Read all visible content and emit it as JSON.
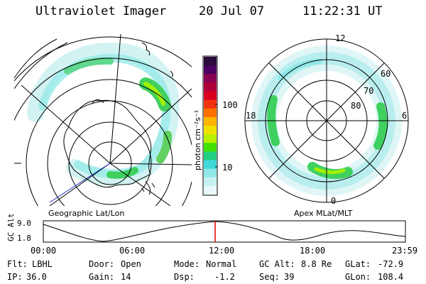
{
  "header": {
    "title": "Ultraviolet Imager",
    "date": "20 Jul 07",
    "time": "11:22:31 UT"
  },
  "left_panel": {
    "label": "Geographic Lat/Lon"
  },
  "right_panel": {
    "label": "Apex MLat/MLT",
    "mlt_labels": [
      "12",
      "18",
      "6",
      "0"
    ],
    "lat_labels": [
      "60",
      "70",
      "80"
    ]
  },
  "colorbar": {
    "unit_label": "photon cm⁻²s⁻¹",
    "ticks": [
      "100",
      "10"
    ],
    "colors": [
      "#2b0a3d",
      "#4a0060",
      "#8a0050",
      "#b0003a",
      "#d8001e",
      "#f03010",
      "#ff7000",
      "#ffb400",
      "#f0e000",
      "#b8f000",
      "#40e000",
      "#20d080",
      "#40d8d8",
      "#90e8e8",
      "#c8f0f0",
      "#e8f8f8"
    ]
  },
  "timeline": {
    "axis_label": "GC Alt",
    "y_ticks": [
      "9.0",
      "1.8"
    ],
    "x_ticks": [
      "00:00",
      "06:00",
      "12:00",
      "18:00",
      "23:59"
    ],
    "marker_color": "#dd0000"
  },
  "footer": {
    "row1": [
      {
        "label": "Flt:",
        "value": "LBHL"
      },
      {
        "label": "Door:",
        "value": "Open"
      },
      {
        "label": "Mode:",
        "value": "Normal"
      },
      {
        "label": "GC Alt:",
        "value": "8.8 Re"
      },
      {
        "label": "GLat:",
        "value": "-72.9"
      }
    ],
    "row2": [
      {
        "label": "IP:",
        "value": "36.0"
      },
      {
        "label": "Gain:",
        "value": "14"
      },
      {
        "label": "Dsp:",
        "value": "-1.2"
      },
      {
        "label": "Seq:",
        "value": "39"
      },
      {
        "label": "GLon:",
        "value": "108.4"
      }
    ]
  }
}
